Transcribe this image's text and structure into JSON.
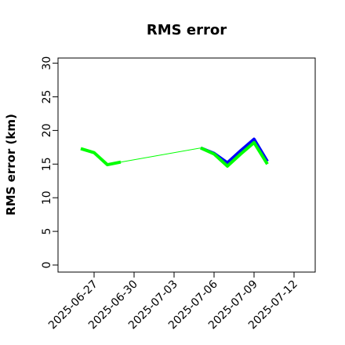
{
  "chart_data": {
    "type": "line",
    "title": "RMS error",
    "xlabel": "",
    "ylabel": "RMS error (km)",
    "xlim": [
      "2025-06-24",
      "2025-07-14"
    ],
    "ylim": [
      0,
      31
    ],
    "y_ticks": [
      0,
      5,
      10,
      15,
      20,
      25,
      30
    ],
    "x_ticks": [
      {
        "label": "2025-06-27",
        "value": "2025-06-27",
        "color": "#000000"
      },
      {
        "label": "2025-06-30",
        "value": "2025-06-30",
        "color": "#000000"
      },
      {
        "label": "2025-07-03",
        "value": "2025-07-03",
        "color": "#228b22"
      },
      {
        "label": "2025-07-06",
        "value": "2025-07-06",
        "color": "#000000"
      },
      {
        "label": "2025-07-09",
        "value": "2025-07-09",
        "color": "#000000"
      },
      {
        "label": "2025-07-12",
        "value": "2025-07-12",
        "color": "#000000"
      }
    ],
    "grid": false,
    "series": [
      {
        "color": "#0000ff",
        "style": "thick",
        "x": [
          "2025-07-05",
          "2025-07-06",
          "2025-07-07",
          "2025-07-08",
          "2025-07-09",
          "2025-07-10"
        ],
        "y": [
          17.4,
          16.6,
          15.2,
          17.0,
          18.7,
          15.4
        ]
      },
      {
        "color": "#00ff00",
        "style": "thick",
        "x": [
          "2025-06-26",
          "2025-06-27",
          "2025-06-28",
          "2025-06-29"
        ],
        "y": [
          17.3,
          16.7,
          14.9,
          15.3
        ]
      },
      {
        "color": "#00ff00",
        "style": "thin",
        "x": [
          "2025-06-29",
          "2025-07-05"
        ],
        "y": [
          15.3,
          17.4
        ]
      },
      {
        "color": "#00ff00",
        "style": "thick",
        "x": [
          "2025-07-05",
          "2025-07-06",
          "2025-07-07",
          "2025-07-08",
          "2025-07-09",
          "2025-07-10"
        ],
        "y": [
          17.4,
          16.5,
          14.7,
          16.5,
          18.2,
          15.0
        ]
      }
    ]
  }
}
